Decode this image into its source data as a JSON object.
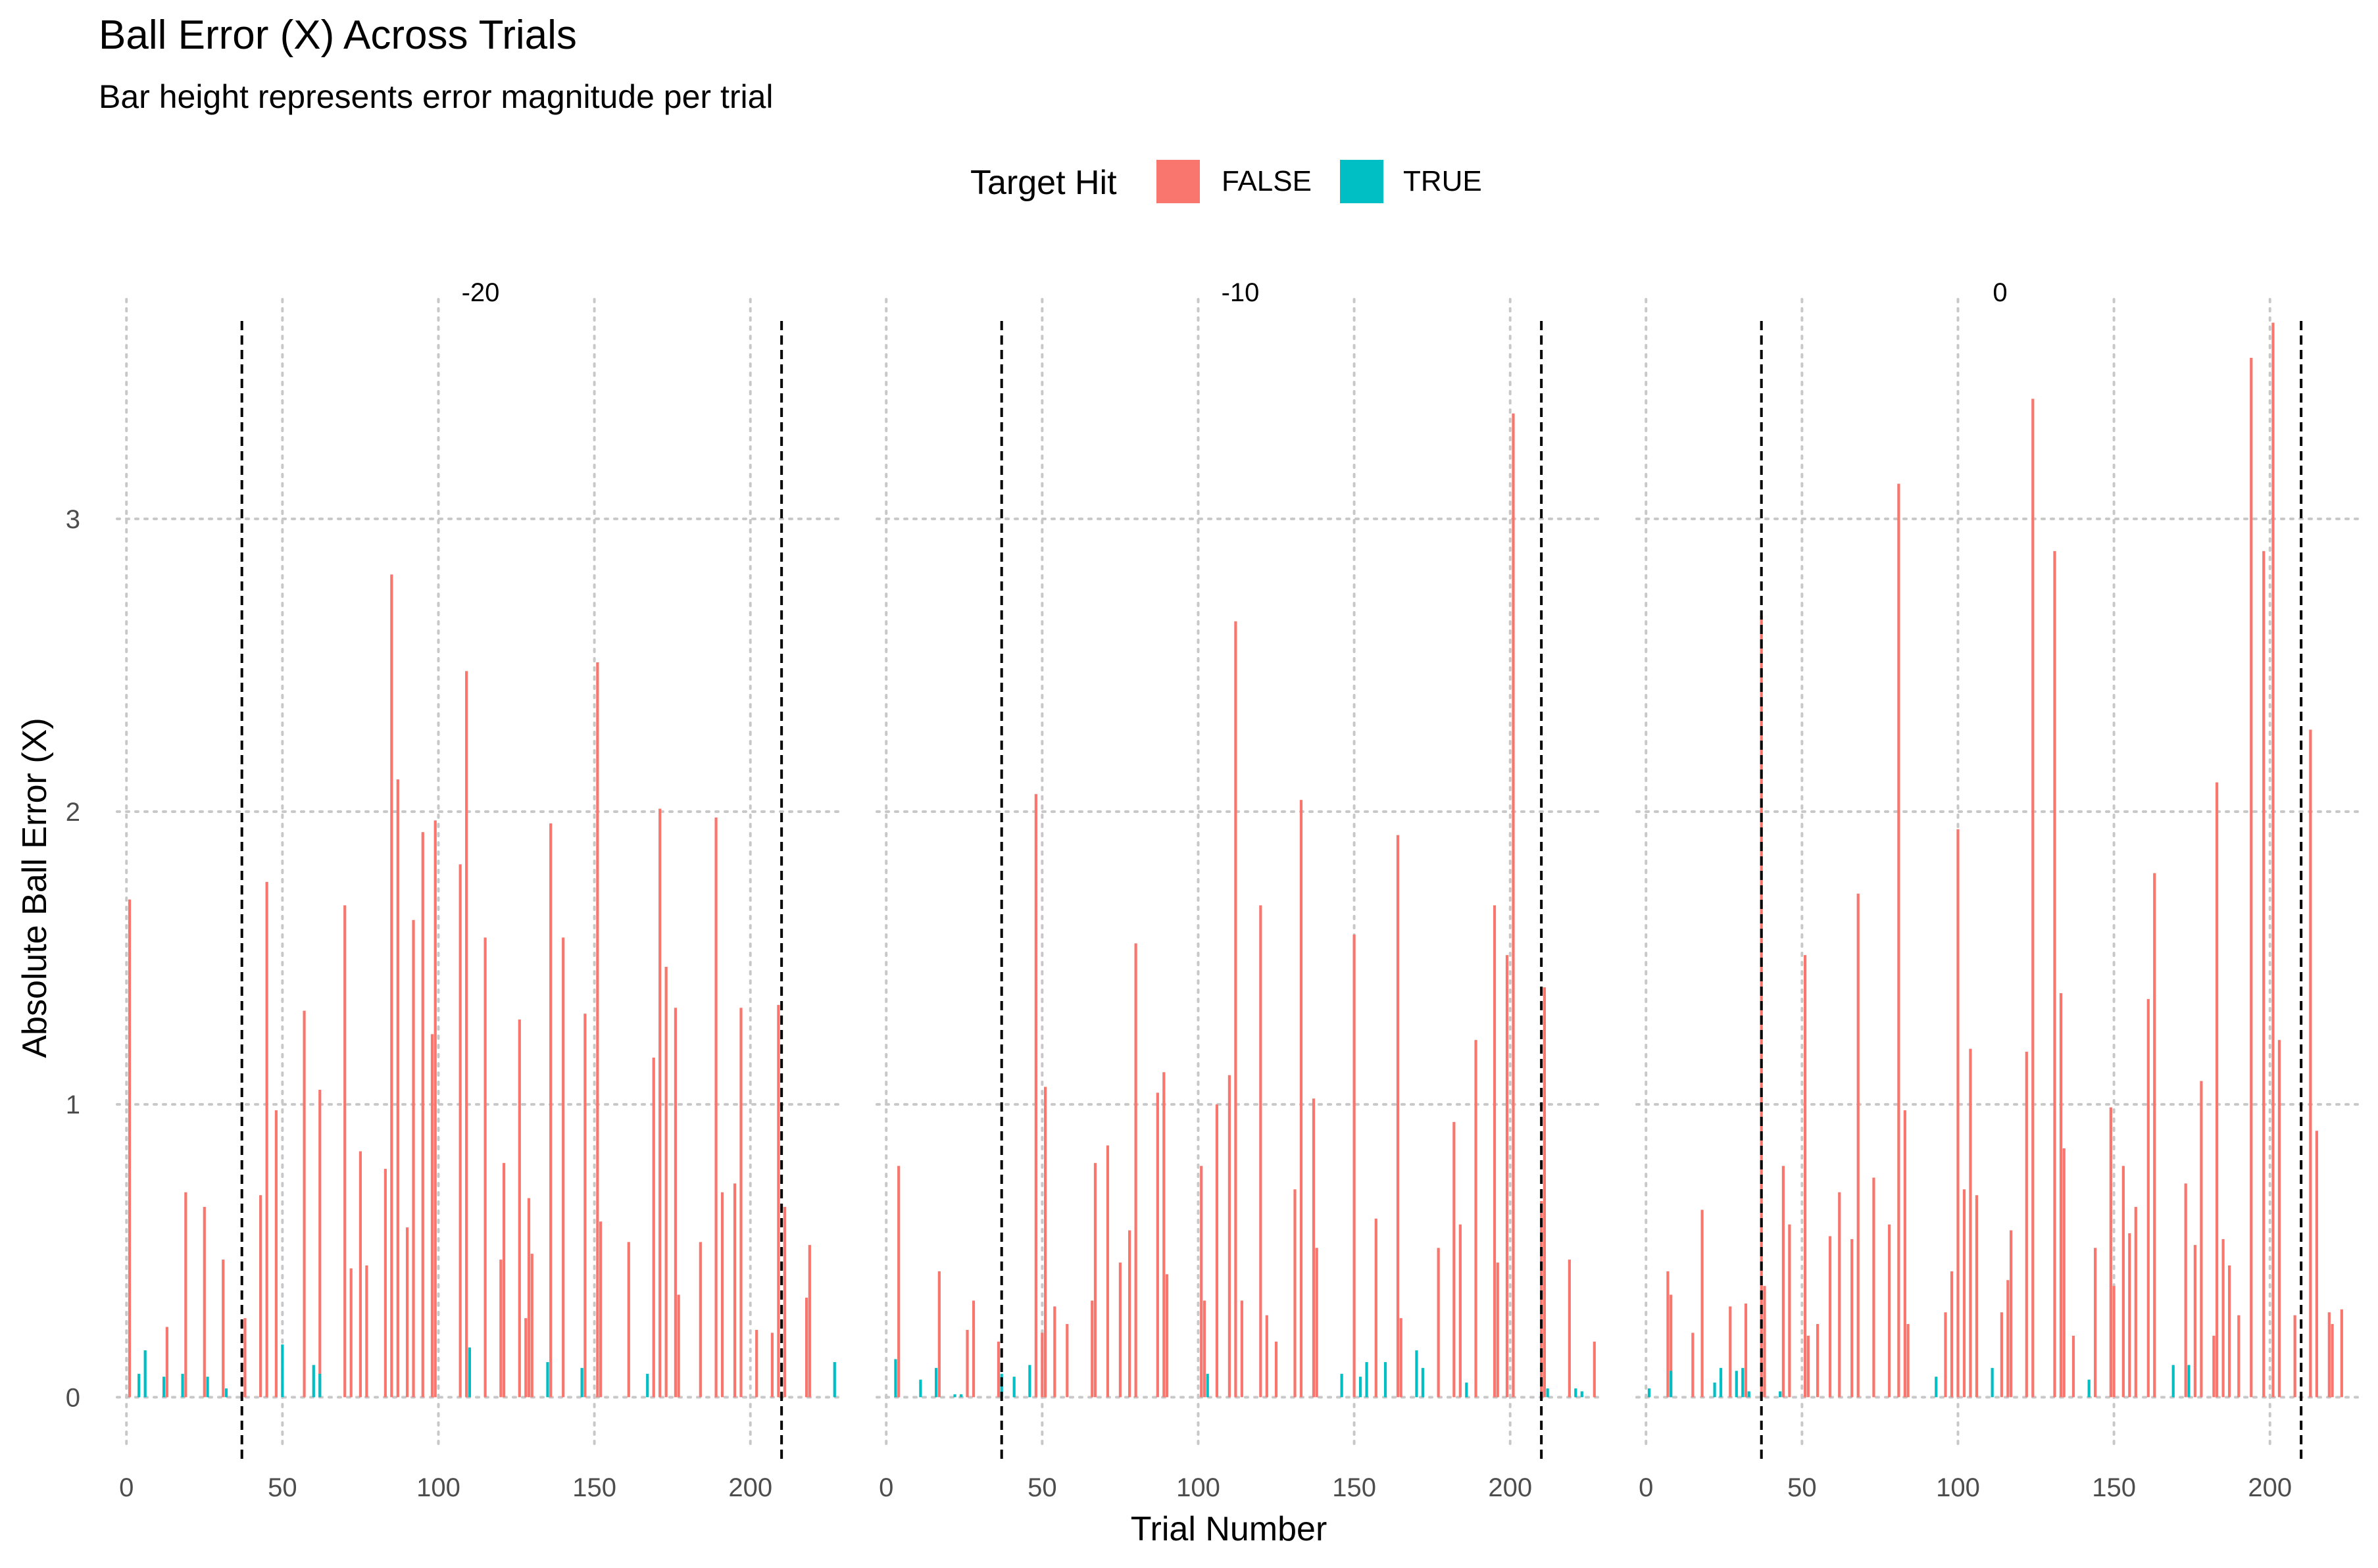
{
  "chart_data": {
    "type": "bar",
    "title": "Ball Error (X) Across Trials",
    "subtitle": "Bar height represents error magnitude per trial",
    "xlabel": "Trial Number",
    "ylabel": "Absolute Ball Error (X)",
    "legend": {
      "title": "Target Hit",
      "position": "top",
      "entries": [
        {
          "label": "FALSE",
          "color": "#F8766D"
        },
        {
          "label": "TRUE",
          "color": "#00BFC4"
        }
      ]
    },
    "xlim": [
      -3,
      230
    ],
    "ylim": [
      -0.17,
      3.75
    ],
    "x_ticks": [
      0,
      50,
      100,
      150,
      200
    ],
    "y_ticks": [
      0,
      1,
      2,
      3
    ],
    "grid": "dotted",
    "colors": {
      "FALSE": "#F8766D",
      "TRUE": "#00BFC4",
      "vline": "#000000",
      "grid": "#c8c8c8"
    },
    "facets": [
      {
        "label": "-20",
        "vlines": [
          37,
          210
        ],
        "series": [
          {
            "name": "FALSE",
            "points": [
              [
                1,
                1.7
              ],
              [
                13,
                0.24
              ],
              [
                19,
                0.7
              ],
              [
                25,
                0.65
              ],
              [
                31,
                0.47
              ],
              [
                38,
                0.27
              ],
              [
                43,
                0.69
              ],
              [
                45,
                1.76
              ],
              [
                48,
                0.98
              ],
              [
                57,
                1.32
              ],
              [
                62,
                1.05
              ],
              [
                70,
                1.68
              ],
              [
                72,
                0.44
              ],
              [
                75,
                0.84
              ],
              [
                77,
                0.45
              ],
              [
                83,
                0.78
              ],
              [
                85,
                2.81
              ],
              [
                87,
                2.11
              ],
              [
                90,
                0.58
              ],
              [
                92,
                1.63
              ],
              [
                95,
                1.93
              ],
              [
                98,
                1.24
              ],
              [
                99,
                1.97
              ],
              [
                107,
                1.82
              ],
              [
                109,
                2.48
              ],
              [
                115,
                1.57
              ],
              [
                120,
                0.47
              ],
              [
                121,
                0.8
              ],
              [
                126,
                1.29
              ],
              [
                128,
                0.27
              ],
              [
                129,
                0.68
              ],
              [
                130,
                0.49
              ],
              [
                136,
                1.96
              ],
              [
                140,
                1.57
              ],
              [
                147,
                1.31
              ],
              [
                151,
                2.51
              ],
              [
                152,
                0.6
              ],
              [
                161,
                0.53
              ],
              [
                169,
                1.16
              ],
              [
                171,
                2.01
              ],
              [
                173,
                1.47
              ],
              [
                176,
                1.33
              ],
              [
                177,
                0.35
              ],
              [
                184,
                0.53
              ],
              [
                189,
                1.98
              ],
              [
                191,
                0.7
              ],
              [
                195,
                0.73
              ],
              [
                197,
                1.33
              ],
              [
                202,
                0.23
              ],
              [
                207,
                0.22
              ],
              [
                209,
                1.34
              ],
              [
                211,
                0.65
              ],
              [
                218,
                0.34
              ],
              [
                219,
                0.52
              ]
            ]
          },
          {
            "name": "TRUE",
            "points": [
              [
                4,
                0.08
              ],
              [
                6,
                0.16
              ],
              [
                12,
                0.07
              ],
              [
                18,
                0.08
              ],
              [
                26,
                0.07
              ],
              [
                32,
                0.03
              ],
              [
                50,
                0.18
              ],
              [
                60,
                0.11
              ],
              [
                62,
                0.08
              ],
              [
                110,
                0.17
              ],
              [
                135,
                0.12
              ],
              [
                146,
                0.1
              ],
              [
                167,
                0.08
              ],
              [
                227,
                0.12
              ]
            ]
          }
        ]
      },
      {
        "label": "-10",
        "vlines": [
          37,
          210
        ],
        "series": [
          {
            "name": "FALSE",
            "points": [
              [
                4,
                0.79
              ],
              [
                17,
                0.43
              ],
              [
                26,
                0.23
              ],
              [
                28,
                0.33
              ],
              [
                36,
                0.19
              ],
              [
                48,
                2.06
              ],
              [
                50,
                0.22
              ],
              [
                51,
                1.06
              ],
              [
                54,
                0.31
              ],
              [
                58,
                0.25
              ],
              [
                66,
                0.33
              ],
              [
                67,
                0.8
              ],
              [
                71,
                0.86
              ],
              [
                75,
                0.46
              ],
              [
                78,
                0.57
              ],
              [
                80,
                1.55
              ],
              [
                87,
                1.04
              ],
              [
                89,
                1.11
              ],
              [
                90,
                0.42
              ],
              [
                101,
                0.79
              ],
              [
                102,
                0.33
              ],
              [
                106,
                1.0
              ],
              [
                110,
                1.1
              ],
              [
                112,
                2.65
              ],
              [
                114,
                0.33
              ],
              [
                120,
                1.68
              ],
              [
                122,
                0.28
              ],
              [
                125,
                0.19
              ],
              [
                131,
                0.71
              ],
              [
                133,
                2.04
              ],
              [
                137,
                1.02
              ],
              [
                138,
                0.51
              ],
              [
                150,
                1.58
              ],
              [
                157,
                0.61
              ],
              [
                164,
                1.92
              ],
              [
                165,
                0.27
              ],
              [
                177,
                0.51
              ],
              [
                182,
                0.94
              ],
              [
                184,
                0.59
              ],
              [
                189,
                1.22
              ],
              [
                195,
                1.68
              ],
              [
                196,
                0.46
              ],
              [
                199,
                1.51
              ],
              [
                201,
                3.36
              ],
              [
                210,
                0.67
              ],
              [
                211,
                1.4
              ],
              [
                219,
                0.47
              ],
              [
                227,
                0.19
              ]
            ]
          },
          {
            "name": "TRUE",
            "points": [
              [
                3,
                0.13
              ],
              [
                11,
                0.06
              ],
              [
                16,
                0.1
              ],
              [
                22,
                0.01
              ],
              [
                24,
                0.01
              ],
              [
                37,
                0.08
              ],
              [
                41,
                0.07
              ],
              [
                46,
                0.11
              ],
              [
                103,
                0.08
              ],
              [
                146,
                0.08
              ],
              [
                152,
                0.07
              ],
              [
                154,
                0.12
              ],
              [
                160,
                0.12
              ],
              [
                170,
                0.16
              ],
              [
                172,
                0.1
              ],
              [
                186,
                0.05
              ],
              [
                212,
                0.03
              ],
              [
                221,
                0.03
              ],
              [
                223,
                0.02
              ]
            ]
          }
        ]
      },
      {
        "label": "0",
        "vlines": [
          37,
          210
        ],
        "series": [
          {
            "name": "FALSE",
            "points": [
              [
                7,
                0.43
              ],
              [
                8,
                0.35
              ],
              [
                15,
                0.22
              ],
              [
                18,
                0.64
              ],
              [
                27,
                0.31
              ],
              [
                32,
                0.32
              ],
              [
                37,
                2.67
              ],
              [
                38,
                0.38
              ],
              [
                44,
                0.79
              ],
              [
                46,
                0.59
              ],
              [
                51,
                1.51
              ],
              [
                52,
                0.21
              ],
              [
                55,
                0.25
              ],
              [
                59,
                0.55
              ],
              [
                62,
                0.7
              ],
              [
                66,
                0.54
              ],
              [
                68,
                1.72
              ],
              [
                73,
                0.75
              ],
              [
                78,
                0.59
              ],
              [
                81,
                3.12
              ],
              [
                83,
                0.98
              ],
              [
                84,
                0.25
              ],
              [
                96,
                0.29
              ],
              [
                98,
                0.43
              ],
              [
                100,
                1.94
              ],
              [
                102,
                0.71
              ],
              [
                104,
                1.19
              ],
              [
                106,
                0.69
              ],
              [
                114,
                0.29
              ],
              [
                116,
                0.4
              ],
              [
                117,
                0.57
              ],
              [
                122,
                1.18
              ],
              [
                124,
                3.41
              ],
              [
                131,
                2.89
              ],
              [
                133,
                1.38
              ],
              [
                134,
                0.85
              ],
              [
                137,
                0.21
              ],
              [
                144,
                0.51
              ],
              [
                149,
                0.99
              ],
              [
                150,
                0.38
              ],
              [
                153,
                0.79
              ],
              [
                155,
                0.56
              ],
              [
                157,
                0.65
              ],
              [
                161,
                1.36
              ],
              [
                163,
                1.79
              ],
              [
                173,
                0.73
              ],
              [
                176,
                0.52
              ],
              [
                178,
                1.08
              ],
              [
                182,
                0.21
              ],
              [
                183,
                2.1
              ],
              [
                185,
                0.54
              ],
              [
                187,
                0.45
              ],
              [
                190,
                0.28
              ],
              [
                194,
                3.55
              ],
              [
                198,
                2.89
              ],
              [
                201,
                3.67
              ],
              [
                203,
                1.22
              ],
              [
                208,
                0.28
              ],
              [
                213,
                2.28
              ],
              [
                215,
                0.91
              ],
              [
                219,
                0.29
              ],
              [
                220,
                0.25
              ],
              [
                223,
                0.3
              ]
            ]
          },
          {
            "name": "TRUE",
            "points": [
              [
                1,
                0.03
              ],
              [
                8,
                0.09
              ],
              [
                22,
                0.05
              ],
              [
                24,
                0.1
              ],
              [
                29,
                0.09
              ],
              [
                31,
                0.1
              ],
              [
                33,
                0.02
              ],
              [
                43,
                0.02
              ],
              [
                93,
                0.07
              ],
              [
                111,
                0.1
              ],
              [
                142,
                0.06
              ],
              [
                169,
                0.11
              ],
              [
                174,
                0.11
              ]
            ]
          }
        ]
      }
    ]
  }
}
